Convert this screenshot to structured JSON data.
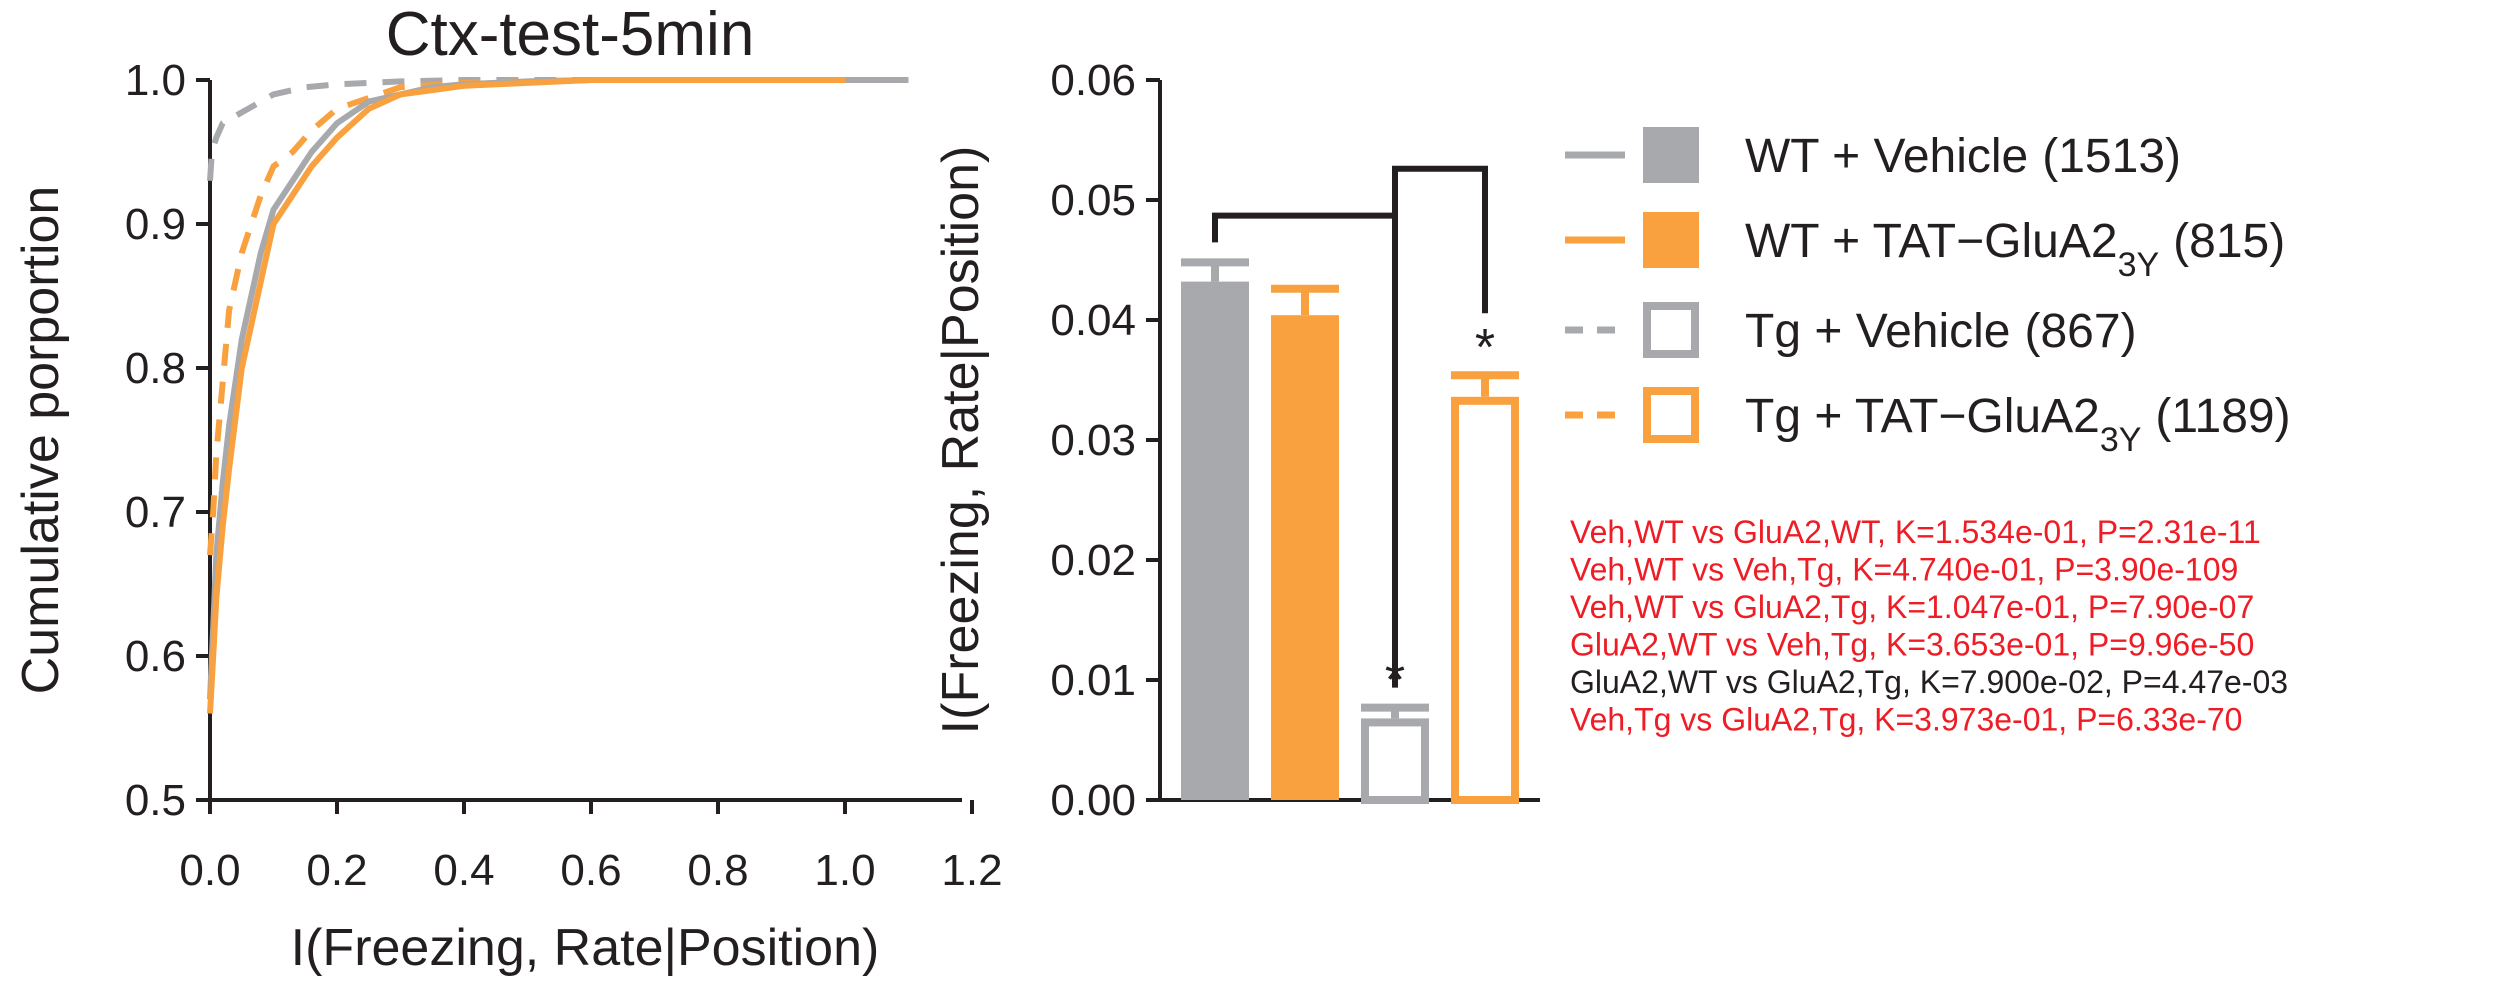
{
  "chart_data": [
    {
      "type": "line",
      "title": "Ctx-test-5min",
      "xlabel": "I(Freezing, Rate|Position)",
      "ylabel": "Cumulative porportion",
      "xlim": [
        0.0,
        1.2
      ],
      "ylim": [
        0.5,
        1.0
      ],
      "x_ticks": [
        "0.0",
        "0.2",
        "0.4",
        "0.6",
        "0.8",
        "1.0",
        "1.2"
      ],
      "y_ticks": [
        "0.5",
        "0.6",
        "0.7",
        "0.8",
        "0.9",
        "1.0"
      ],
      "grid": false,
      "series": [
        {
          "name": "WT + Vehicle",
          "color": "#a7a9ac",
          "dash": "solid",
          "x": [
            0.0,
            0.005,
            0.01,
            0.02,
            0.03,
            0.05,
            0.08,
            0.1,
            0.13,
            0.16,
            0.2,
            0.25,
            0.3,
            0.35,
            0.4,
            0.5,
            0.6,
            0.8,
            1.0,
            1.1
          ],
          "y": [
            0.57,
            0.62,
            0.67,
            0.72,
            0.76,
            0.82,
            0.88,
            0.91,
            0.93,
            0.95,
            0.97,
            0.985,
            0.99,
            0.995,
            0.997,
            0.999,
            1.0,
            1.0,
            1.0,
            1.0
          ]
        },
        {
          "name": "WT + TAT−GluA2",
          "color": "#f9a03f",
          "dash": "solid",
          "x": [
            0.0,
            0.005,
            0.01,
            0.02,
            0.03,
            0.05,
            0.08,
            0.1,
            0.13,
            0.16,
            0.2,
            0.25,
            0.3,
            0.35,
            0.4,
            0.5,
            0.6,
            0.8,
            1.0
          ],
          "y": [
            0.56,
            0.6,
            0.64,
            0.69,
            0.73,
            0.8,
            0.86,
            0.9,
            0.92,
            0.94,
            0.96,
            0.98,
            0.99,
            0.993,
            0.996,
            0.998,
            1.0,
            1.0,
            1.0
          ]
        },
        {
          "name": "Tg + Vehicle",
          "color": "#a7a9ac",
          "dash": "dashed",
          "x": [
            0.0,
            0.003,
            0.01,
            0.02,
            0.04,
            0.06,
            0.1,
            0.15,
            0.2,
            0.3,
            0.4,
            0.6
          ],
          "y": [
            0.93,
            0.95,
            0.96,
            0.97,
            0.975,
            0.98,
            0.99,
            0.995,
            0.997,
            0.999,
            1.0,
            1.0
          ]
        },
        {
          "name": "Tg + TAT−GluA2",
          "color": "#f9a03f",
          "dash": "dashed",
          "x": [
            0.0,
            0.005,
            0.01,
            0.02,
            0.03,
            0.05,
            0.08,
            0.1,
            0.13,
            0.16,
            0.2,
            0.3,
            0.4,
            0.6,
            0.8
          ],
          "y": [
            0.67,
            0.7,
            0.74,
            0.79,
            0.84,
            0.88,
            0.92,
            0.94,
            0.95,
            0.965,
            0.98,
            0.995,
            0.998,
            1.0,
            1.0
          ]
        }
      ]
    },
    {
      "type": "bar",
      "ylabel": "I(Freezing, Rate|Position)",
      "ylim": [
        0.0,
        0.06
      ],
      "y_ticks": [
        "0.00",
        "0.01",
        "0.02",
        "0.03",
        "0.04",
        "0.05",
        "0.06"
      ],
      "categories": [
        "WT + Vehicle",
        "WT + TAT−GluA2",
        "Tg + Vehicle",
        "Tg + TAT−GluA2"
      ],
      "values": [
        0.0432,
        0.0404,
        0.0068,
        0.0336
      ],
      "errors": [
        0.0016,
        0.0022,
        0.0009,
        0.0018
      ],
      "colors": [
        "#a7a9ac",
        "#f9a03f",
        "#a7a9ac",
        "#f9a03f"
      ],
      "filled": [
        true,
        true,
        false,
        false
      ],
      "significance_markers": [
        "",
        "",
        "*",
        "*"
      ],
      "brackets": [
        {
          "from": 0,
          "to": 2,
          "height": 0.0487
        },
        {
          "from": 2,
          "to": 3,
          "height": 0.0526
        }
      ]
    }
  ],
  "legend": {
    "items": [
      {
        "label": "WT + Vehicle",
        "sub": "",
        "count": "(1513)",
        "color": "#a7a9ac",
        "dash": "solid",
        "filled": true
      },
      {
        "label": "WT + TAT−GluA2",
        "sub": "3Y",
        "count": "(815)",
        "color": "#f9a03f",
        "dash": "solid",
        "filled": true
      },
      {
        "label": "Tg + Vehicle",
        "sub": "",
        "count": "(867)",
        "color": "#a7a9ac",
        "dash": "dashed",
        "filled": false
      },
      {
        "label": "Tg + TAT−GluA2",
        "sub": "3Y",
        "count": "(1189)",
        "color": "#f9a03f",
        "dash": "dashed",
        "filled": false
      }
    ]
  },
  "stats": [
    {
      "text": "Veh,WT vs GluA2,WT, K=1.534e-01, P=2.31e-11",
      "color": "#ee1c25"
    },
    {
      "text": "Veh,WT vs Veh,Tg, K=4.740e-01, P=3.90e-109",
      "color": "#ee1c25"
    },
    {
      "text": "Veh,WT vs GluA2,Tg, K=1.047e-01, P=7.90e-07",
      "color": "#ee1c25"
    },
    {
      "text": "GluA2,WT vs Veh,Tg, K=3.653e-01, P=9.96e-50",
      "color": "#ee1c25"
    },
    {
      "text": "GluA2,WT vs GluA2,Tg, K=7.900e-02, P=4.47e-03",
      "color": "#231f20"
    },
    {
      "text": "Veh,Tg vs GluA2,Tg, K=3.973e-01, P=6.33e-70",
      "color": "#ee1c25"
    }
  ]
}
